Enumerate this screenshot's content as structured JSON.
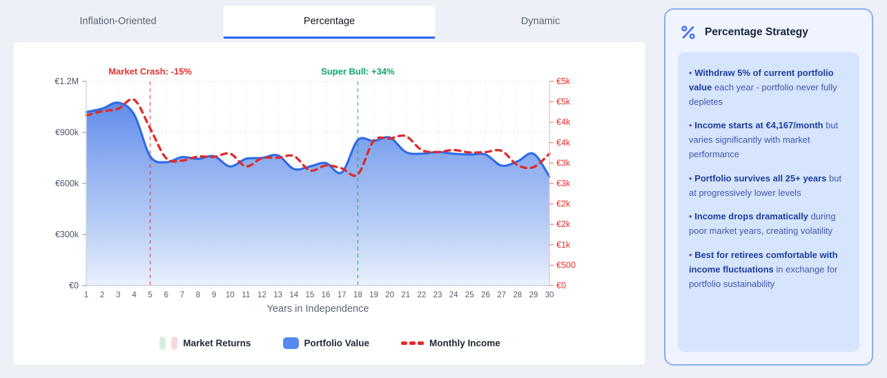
{
  "tabs": [
    {
      "label": "Inflation-Oriented",
      "active": false
    },
    {
      "label": "Percentage",
      "active": true
    },
    {
      "label": "Dynamic",
      "active": false
    }
  ],
  "chart_data": {
    "type": "area",
    "title": "",
    "xlabel": "Years in Independence",
    "x": [
      1,
      2,
      3,
      4,
      5,
      6,
      7,
      8,
      9,
      10,
      11,
      12,
      13,
      14,
      15,
      16,
      17,
      18,
      19,
      20,
      21,
      22,
      23,
      24,
      25,
      26,
      27,
      28,
      29,
      30
    ],
    "left_axis": {
      "max": 1200000,
      "ticks": [
        {
          "label": "€1.2M",
          "value": 1200000
        },
        {
          "label": "€900k",
          "value": 900000
        },
        {
          "label": "€600k",
          "value": 600000
        },
        {
          "label": "€300k",
          "value": 300000
        },
        {
          "label": "€0",
          "value": 0
        }
      ]
    },
    "right_axis": {
      "max": 5000,
      "tick_values": [
        5000,
        4500,
        4000,
        3500,
        3000,
        2500,
        2000,
        1500,
        1000,
        500,
        0
      ],
      "tick_labels": [
        "€5k",
        "€5k",
        "€4k",
        "€4k",
        "€3k",
        "€3k",
        "€2k",
        "€2k",
        "€1k",
        "€500",
        "€0"
      ]
    },
    "series": [
      {
        "name": "Portfolio Value",
        "axis": "left",
        "color": "#2e6be6",
        "values": [
          1020000,
          1040000,
          1075000,
          1005000,
          760000,
          725000,
          755000,
          745000,
          760000,
          700000,
          745000,
          750000,
          765000,
          685000,
          700000,
          720000,
          665000,
          855000,
          850000,
          870000,
          785000,
          775000,
          785000,
          775000,
          770000,
          770000,
          705000,
          730000,
          775000,
          640000
        ]
      },
      {
        "name": "Monthly Income",
        "axis": "right",
        "color": "#e02a2a",
        "style": "dashed",
        "values": [
          4167,
          4270,
          4330,
          4550,
          3850,
          3120,
          3060,
          3160,
          3150,
          3230,
          2920,
          3120,
          3130,
          3170,
          2820,
          2940,
          2870,
          2720,
          3550,
          3600,
          3660,
          3320,
          3270,
          3320,
          3260,
          3270,
          3300,
          2950,
          2900,
          3230
        ]
      }
    ],
    "annotations": [
      {
        "x": 5,
        "label": "Market Crash: -15%",
        "color": "#e5312b"
      },
      {
        "x": 18,
        "label": "Super Bull: +34%",
        "color": "#0fa564"
      }
    ],
    "legend": [
      {
        "label": "Market Returns",
        "swatch": "dual-pill",
        "colors": [
          "#d8efdc",
          "#f8d9dc"
        ]
      },
      {
        "label": "Portfolio Value",
        "swatch": "square",
        "colors": [
          "#568af0"
        ]
      },
      {
        "label": "Monthly Income",
        "swatch": "dashes",
        "colors": [
          "#e02a2a"
        ]
      }
    ],
    "grid": true,
    "legend_position": "bottom"
  },
  "panel": {
    "title": "Percentage Strategy",
    "icon": "percent-icon",
    "accent_color": "#3e6cf2",
    "marker": "•",
    "bullets": [
      {
        "bold": "Withdraw 5% of current portfolio value",
        "rest": " each year - portfolio never fully depletes"
      },
      {
        "bold": "Income starts at €4,167/month",
        "rest": " but varies significantly with market performance"
      },
      {
        "bold": "Portfolio survives all 25+ years",
        "rest": " but at progressively lower levels"
      },
      {
        "bold": "Income drops dramatically",
        "rest": " during poor market years, creating volatility"
      },
      {
        "bold": "Best for retirees comfortable with income fluctuations",
        "rest": " in exchange for portfolio sustainability"
      }
    ]
  }
}
